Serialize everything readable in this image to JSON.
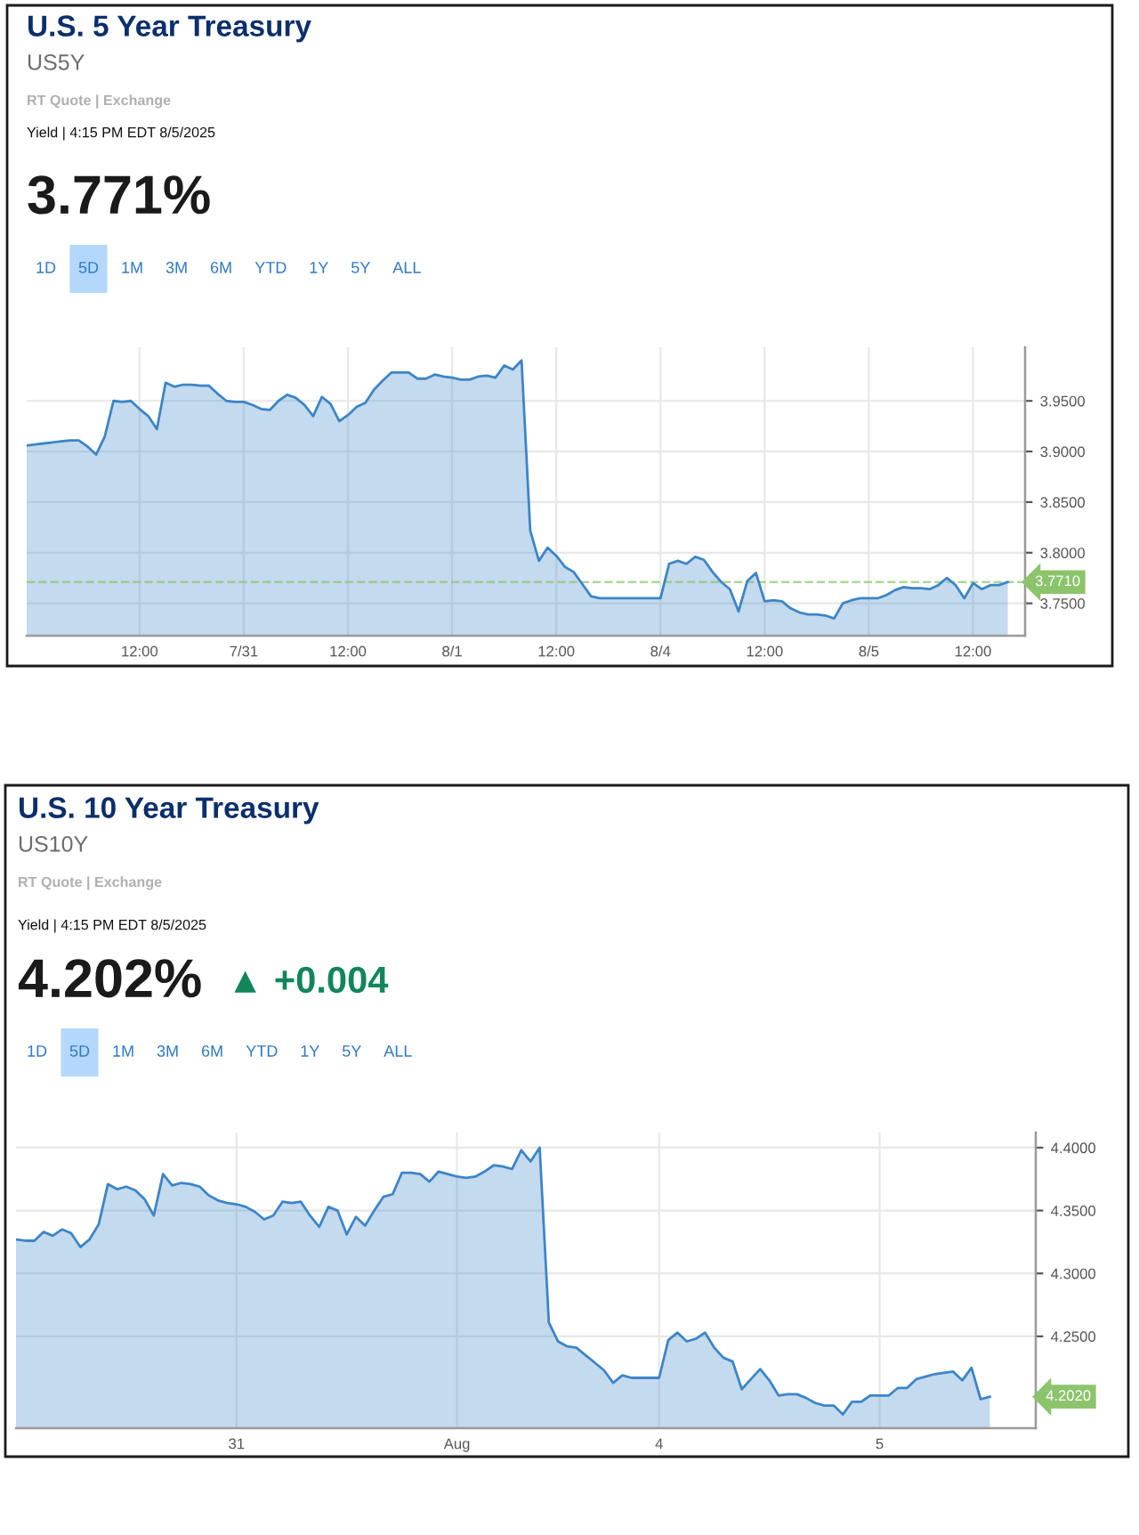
{
  "chart_data": [
    {
      "type": "area",
      "title": "U.S. 5 Year Treasury",
      "subtitle": "US5Y",
      "annotations": [
        "RT Quote | Exchange",
        "Yield | 4:15 PM EDT 8/5/2025",
        "3.771%",
        "1D",
        "5D",
        "1M",
        "3M",
        "6M",
        "YTD",
        "1Y",
        "5Y",
        "ALL"
      ],
      "categories": [
        null,
        null,
        null,
        null,
        null,
        null,
        null,
        null,
        null,
        null,
        null,
        null,
        null,
        "12:00",
        null,
        null,
        null,
        null,
        null,
        null,
        null,
        null,
        null,
        null,
        null,
        "7/31",
        null,
        null,
        null,
        null,
        null,
        null,
        null,
        null,
        null,
        null,
        null,
        "12:00",
        null,
        null,
        null,
        null,
        null,
        null,
        null,
        null,
        null,
        null,
        null,
        "8/1",
        null,
        null,
        null,
        null,
        null,
        null,
        null,
        null,
        null,
        null,
        null,
        "12:00",
        null,
        null,
        null,
        null,
        null,
        null,
        null,
        null,
        null,
        null,
        null,
        "8/4",
        null,
        null,
        null,
        null,
        null,
        null,
        null,
        null,
        null,
        null,
        null,
        "12:00",
        null,
        null,
        null,
        null,
        null,
        null,
        null,
        null,
        null,
        null,
        null,
        "8/5",
        null,
        null,
        null,
        null,
        null,
        null,
        null,
        null,
        null,
        null,
        null,
        "12:00",
        null,
        null,
        null,
        null,
        null,
        null
      ],
      "series": [
        {
          "color": "#3d85c6",
          "values": [
            3.906,
            3.907,
            3.908,
            3.909,
            3.91,
            3.911,
            3.911,
            3.905,
            3.897,
            3.915,
            3.95,
            3.949,
            3.95,
            3.942,
            3.935,
            3.922,
            3.968,
            3.964,
            3.966,
            3.966,
            3.965,
            3.965,
            3.957,
            3.95,
            3.949,
            3.949,
            3.946,
            3.942,
            3.941,
            3.95,
            3.956,
            3.953,
            3.946,
            3.935,
            3.954,
            3.947,
            3.93,
            3.936,
            3.944,
            3.948,
            3.961,
            3.97,
            3.978,
            3.978,
            3.978,
            3.972,
            3.972,
            3.976,
            3.974,
            3.973,
            3.971,
            3.971,
            3.974,
            3.975,
            3.973,
            3.985,
            3.981,
            3.99,
            3.822,
            3.792,
            3.805,
            3.797,
            3.786,
            3.781,
            3.769,
            3.757,
            3.755,
            3.755,
            3.755,
            3.755,
            3.755,
            3.755,
            3.755,
            3.755,
            3.789,
            3.792,
            3.789,
            3.796,
            3.793,
            3.781,
            3.771,
            3.764,
            3.742,
            3.772,
            3.78,
            3.752,
            3.753,
            3.752,
            3.745,
            3.741,
            3.739,
            3.739,
            3.738,
            3.735,
            3.75,
            3.753,
            3.755,
            3.755,
            3.755,
            3.758,
            3.763,
            3.766,
            3.765,
            3.765,
            3.764,
            3.768,
            3.775,
            3.768,
            3.755,
            3.77,
            3.764,
            3.768,
            3.768,
            3.771,
            null,
            null
          ]
        }
      ],
      "ylim": [
        3.718,
        4.003
      ],
      "yticks": [
        {
          "value": 3.75,
          "label": "3.7500"
        },
        {
          "value": 3.8,
          "label": "3.8000"
        },
        {
          "value": 3.85,
          "label": "3.8500"
        },
        {
          "value": 3.9,
          "label": "3.9000"
        },
        {
          "value": 3.95,
          "label": "3.9500"
        }
      ],
      "grid": true,
      "ref_lines": [
        {
          "axis": "y",
          "value": 3.771,
          "label": "3.7710",
          "color": "#8cc46c",
          "line_style": "dashed"
        }
      ]
    },
    {
      "type": "area",
      "title": "U.S. 10 Year Treasury",
      "subtitle": "US10Y",
      "annotations": [
        "RT Quote | Exchange",
        "Yield | 4:15 PM EDT 8/5/2025",
        "4.202%",
        "1D",
        "5D",
        "1M",
        "3M",
        "6M",
        "YTD",
        "1Y",
        "5Y",
        "ALL",
        "▲ +0.004",
        "4.2020"
      ],
      "categories": [
        null,
        null,
        null,
        null,
        null,
        null,
        null,
        null,
        null,
        null,
        null,
        null,
        null,
        null,
        null,
        null,
        null,
        null,
        null,
        null,
        null,
        null,
        null,
        null,
        "31",
        null,
        null,
        null,
        null,
        null,
        null,
        null,
        null,
        null,
        null,
        null,
        null,
        null,
        null,
        null,
        null,
        null,
        null,
        null,
        null,
        null,
        null,
        null,
        "Aug",
        null,
        null,
        null,
        null,
        null,
        null,
        null,
        null,
        null,
        null,
        null,
        null,
        null,
        null,
        null,
        null,
        null,
        null,
        null,
        null,
        null,
        "4",
        null,
        null,
        null,
        null,
        null,
        null,
        null,
        null,
        null,
        null,
        null,
        null,
        null,
        null,
        null,
        null,
        null,
        null,
        null,
        null,
        null,
        null,
        null,
        "5",
        null,
        null,
        null,
        null,
        null,
        null,
        null,
        null,
        null,
        null,
        null,
        null,
        null,
        null,
        null,
        null,
        null
      ],
      "series": [
        {
          "color": "#3d85c6",
          "values": [
            4.327,
            4.326,
            4.326,
            4.333,
            4.33,
            4.335,
            4.332,
            4.321,
            4.327,
            4.339,
            4.371,
            4.367,
            4.369,
            4.366,
            4.359,
            4.346,
            4.379,
            4.37,
            4.372,
            4.371,
            4.369,
            4.362,
            4.358,
            4.356,
            4.355,
            4.353,
            4.349,
            4.343,
            4.346,
            4.357,
            4.356,
            4.357,
            4.346,
            4.337,
            4.353,
            4.35,
            4.331,
            4.345,
            4.338,
            4.35,
            4.361,
            4.363,
            4.38,
            4.38,
            4.379,
            4.373,
            4.381,
            4.379,
            4.377,
            4.376,
            4.377,
            4.381,
            4.386,
            4.385,
            4.383,
            4.398,
            4.389,
            4.4,
            4.261,
            4.246,
            4.242,
            4.241,
            4.235,
            4.229,
            4.223,
            4.213,
            4.219,
            4.217,
            4.217,
            4.217,
            4.217,
            4.247,
            4.253,
            4.246,
            4.248,
            4.253,
            4.241,
            4.233,
            4.23,
            4.208,
            4.216,
            4.224,
            4.215,
            4.203,
            4.204,
            4.204,
            4.201,
            4.197,
            4.195,
            4.195,
            4.188,
            4.198,
            4.198,
            4.203,
            4.203,
            4.203,
            4.209,
            4.209,
            4.216,
            4.218,
            4.22,
            4.221,
            4.222,
            4.215,
            4.225,
            4.2,
            4.202,
            null,
            null,
            null,
            null,
            null
          ]
        }
      ],
      "ylim": [
        4.177,
        4.412
      ],
      "yticks": [
        {
          "value": 4.25,
          "label": "4.2500"
        },
        {
          "value": 4.3,
          "label": "4.3000"
        },
        {
          "value": 4.35,
          "label": "4.3500"
        },
        {
          "value": 4.4,
          "label": "4.4000"
        }
      ],
      "grid": true
    }
  ]
}
